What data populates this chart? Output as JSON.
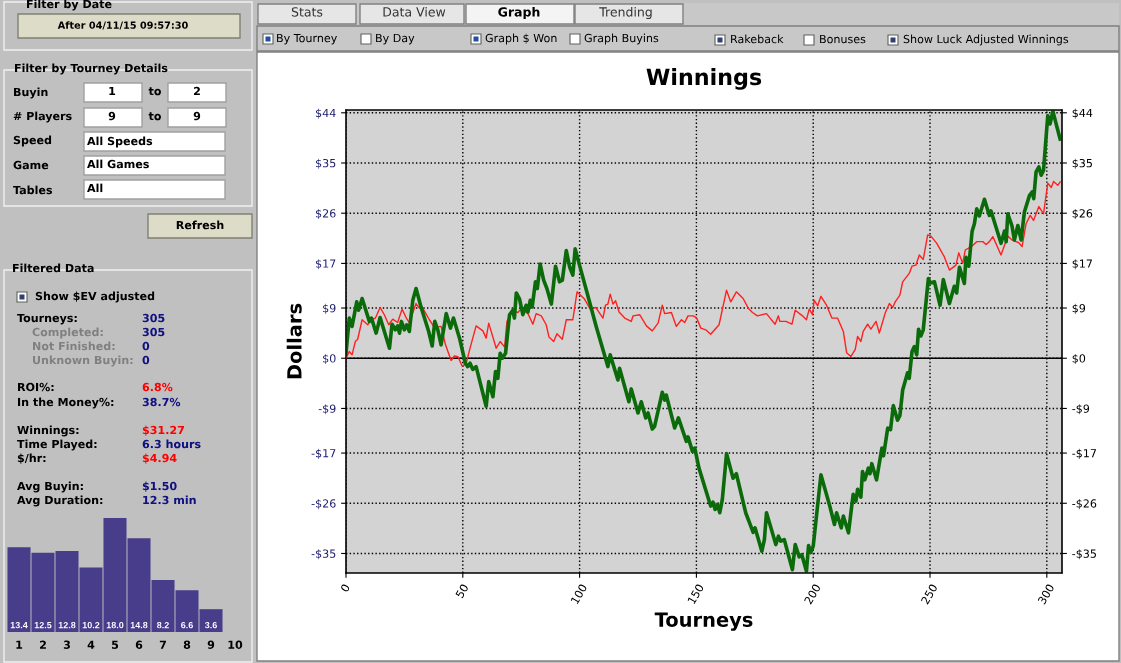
{
  "chart_data": [
    {
      "type": "other",
      "annotations": [
        "Filter by Date",
        "After 04/11/15 09:57:30",
        "Filter by Tourney Details",
        "Buyin",
        "1",
        "to",
        "2",
        "# Players",
        "9",
        "to",
        "9",
        "Speed",
        "All Speeds",
        "Game",
        "All Games",
        "Tables",
        "All",
        "Refresh",
        "Filtered Data",
        "Show $EV adjusted",
        "Tourneys:",
        "305",
        "Completed:",
        "305",
        "Not Finished:",
        "0",
        "Unknown Buyin:",
        "0",
        "ROI%:",
        "6.8%",
        "In the Money%:",
        "38.7%",
        "Winnings:",
        "$31.27",
        "Time Played:",
        "6.3 hours",
        "$/hr:",
        "$4.94",
        "Avg Buyin:",
        "$1.50",
        "Avg Duration:",
        "12.3 min",
        "Stats",
        "Data View",
        "Graph",
        "Trending",
        "By Tourney",
        "By Day",
        "Graph $ Won",
        "Graph Buyins",
        "Rakeback",
        "Bonuses",
        "Show Luck Adjusted Winnings"
      ]
    },
    {
      "type": "bar",
      "categories": [
        "1",
        "2",
        "3",
        "4",
        "5",
        "6",
        "7",
        "8",
        "9",
        "10"
      ],
      "values": [
        13.4,
        12.5,
        12.8,
        10.2,
        18.0,
        14.8,
        8.2,
        6.6,
        3.6,
        null
      ],
      "value_labels": [
        "13.4",
        "12.5",
        "12.8",
        "10.2",
        "18.0",
        "14.8",
        "8.2",
        "6.6",
        "3.6",
        null
      ],
      "color": "#483d8b",
      "tick_labels": "x"
    },
    {
      "type": "line",
      "title": "Winnings",
      "xlabel": "Tourneys",
      "ylabel": "Dollars",
      "grid": true,
      "marker": "none",
      "line_style": "solid",
      "xlim": [
        0,
        306.5
      ],
      "xticks": [
        0,
        50,
        100,
        150,
        200,
        250,
        300
      ],
      "ylim": [
        -38.5,
        44.5
      ],
      "yticks": [
        {
          "value": 44,
          "label": "$44"
        },
        {
          "value": 35,
          "label": "$35"
        },
        {
          "value": 26,
          "label": "$26"
        },
        {
          "value": 17,
          "label": "$17"
        },
        {
          "value": 9,
          "label": "$9"
        },
        {
          "value": 0,
          "label": "$0"
        },
        {
          "value": -9,
          "label": "-$9"
        },
        {
          "value": -17,
          "label": "-$17"
        },
        {
          "value": -26,
          "label": "-$26"
        },
        {
          "value": -35,
          "label": "-$35"
        }
      ],
      "y2lim": [
        -38.5,
        44.5
      ],
      "y2ticks": [
        {
          "value": 44,
          "label": "$44"
        },
        {
          "value": 35,
          "label": "$35"
        },
        {
          "value": 26,
          "label": "$26"
        },
        {
          "value": 17,
          "label": "$17"
        },
        {
          "value": 9,
          "label": "$9"
        },
        {
          "value": 0,
          "label": "$0"
        },
        {
          "value": -9,
          "label": "-$9"
        },
        {
          "value": -17,
          "label": "-$17"
        },
        {
          "value": -26,
          "label": "-$26"
        },
        {
          "value": -35,
          "label": "-$35"
        }
      ],
      "ref_lines": [
        {
          "axis": "y",
          "value": 0,
          "color": "#000000"
        }
      ],
      "series": [
        {
          "color": "#ff2020",
          "x": [
            0,
            1.4,
            2.6,
            4,
            5,
            6.9,
            9.3,
            10.7,
            12.6,
            14.6,
            16.4,
            18.3,
            20,
            22.1,
            24,
            25.7,
            27.1,
            30,
            31.1,
            33.1,
            35.7,
            37.9,
            40.7,
            42.6,
            45,
            46.4,
            47.9,
            49.7,
            51.4,
            53.1,
            55.7,
            58.6,
            60,
            61.1,
            64.3,
            66,
            67.9,
            68.9,
            71.4,
            73.6,
            75,
            77.9,
            80,
            81.4,
            83.6,
            85.7,
            86.9,
            88.9,
            90.3,
            92.6,
            94.3,
            97.1,
            98.9,
            102.1,
            104.6,
            106.9,
            110,
            111.1,
            112.1,
            113.1,
            114.3,
            115.4,
            116.9,
            119.3,
            122.1,
            122.9,
            125.7,
            128.6,
            131.1,
            133.6,
            135.4,
            136.4,
            139.3,
            141.4,
            143.6,
            145,
            146.4,
            148.6,
            150,
            151.9,
            154,
            156.1,
            159.7,
            162.9,
            164.7,
            167.1,
            170,
            172.3,
            174,
            176.1,
            180,
            181.9,
            183.7,
            185.1,
            185.7,
            188.3,
            190.9,
            192.3,
            195.4,
            197.1,
            198.3,
            199.7,
            200.4,
            201.9,
            203.3,
            205.7,
            208,
            210.4,
            212.9,
            214.3,
            216.1,
            218,
            219,
            220.4,
            221.4,
            223.3,
            224.7,
            226.9,
            228.3,
            230.9,
            232.6,
            234,
            235.1,
            237.1,
            238.3,
            241.1,
            242.3,
            244,
            245.4,
            247.1,
            249,
            250.4,
            252.9,
            256.1,
            258.3,
            261.1,
            262.3,
            264,
            265.1,
            268,
            270,
            272.6,
            274,
            275.4,
            276.9,
            280.4,
            283.3,
            285.1,
            288,
            289.4,
            291.1,
            292.9,
            294.3,
            296.6,
            298.6,
            300.4,
            301.9,
            302.9,
            304.7,
            305.7
          ],
          "values": [
            0,
            1.2,
            0.6,
            3.0,
            3.4,
            6.9,
            6.0,
            6.9,
            7.2,
            9.1,
            7.8,
            6.0,
            7.0,
            6.4,
            8.8,
            7.3,
            6.4,
            9.8,
            9.1,
            8.8,
            6.9,
            5.5,
            5.7,
            2.4,
            -0.4,
            0.4,
            0.3,
            -1.4,
            -1.0,
            1.8,
            5.8,
            4.9,
            3.6,
            6.3,
            1.8,
            3.0,
            2.0,
            6.6,
            8.5,
            8.2,
            8.9,
            8.0,
            6.1,
            8.0,
            7.6,
            6.0,
            3.8,
            3.0,
            4.4,
            3.4,
            6.9,
            6.9,
            11.9,
            10.6,
            8.8,
            9.1,
            7.2,
            9.5,
            9.7,
            11.5,
            9.7,
            10.3,
            8.3,
            7.2,
            6.6,
            7.6,
            7.8,
            5.8,
            4.9,
            6.3,
            9.5,
            8.0,
            8.2,
            5.7,
            6.9,
            6.4,
            7.6,
            7.6,
            7.3,
            5.4,
            5.1,
            4.3,
            6.0,
            12.2,
            10.1,
            11.9,
            10.7,
            8.9,
            8.2,
            7.6,
            8.0,
            7.0,
            6.1,
            7.6,
            6.6,
            6.6,
            6.1,
            8.6,
            7.6,
            6.9,
            8.8,
            7.8,
            10.4,
            9.4,
            11.1,
            9.5,
            7.2,
            7.2,
            4.8,
            1.0,
            0.3,
            1.6,
            3.9,
            3.0,
            4.8,
            6.1,
            5.2,
            6.6,
            4.5,
            8.2,
            9.8,
            9.1,
            10.1,
            11.3,
            13.7,
            15.2,
            16.5,
            16.7,
            18.5,
            17.7,
            22.1,
            21.9,
            20.6,
            18.2,
            15.8,
            16.7,
            18.9,
            17.0,
            19.4,
            20.1,
            20.9,
            20.9,
            20.4,
            20.9,
            21.8,
            18.5,
            21.9,
            21.2,
            20.7,
            20.0,
            24.1,
            25.6,
            24.7,
            27.2,
            25.9,
            31.4,
            30.6,
            31.7,
            31.0,
            31.6
          ]
        },
        {
          "color": "#0b6b0b",
          "x": [
            0,
            1.4,
            2.6,
            4.6,
            5.4,
            6.9,
            10,
            10.9,
            12.9,
            14.6,
            18.6,
            19.7,
            21.1,
            22.1,
            22.9,
            23.7,
            25,
            26,
            27.1,
            28.6,
            30,
            32.1,
            35.4,
            36.9,
            38,
            39.3,
            40.7,
            42.9,
            44.7,
            46,
            48.6,
            51.1,
            52.1,
            53.1,
            54.3,
            55.7,
            60,
            61.1,
            62.9,
            64,
            65,
            66,
            66.9,
            68.3,
            70,
            71.4,
            72.1,
            72.9,
            74.3,
            75.7,
            77.1,
            77.9,
            78.9,
            79.7,
            81.1,
            81.9,
            83.1,
            84.6,
            86,
            87.9,
            89.7,
            91.4,
            92.6,
            94.3,
            95.7,
            97.1,
            98.1,
            99.7,
            102.9,
            107.1,
            112.1,
            113.1,
            116.4,
            117.1,
            121.1,
            122.1,
            125,
            126.4,
            128.3,
            129.3,
            131.1,
            132.1,
            135.4,
            136.4,
            137.1,
            140.7,
            142.3,
            145.7,
            146.4,
            148.3,
            149.3,
            151.1,
            156.1,
            157.1,
            158,
            159,
            160,
            161.1,
            162.9,
            165.7,
            167.1,
            171.1,
            174.3,
            175.1,
            178,
            179.1,
            180,
            181.9,
            184,
            185.1,
            186.1,
            187.6,
            191.1,
            192.3,
            194,
            195.1,
            197.1,
            198,
            199,
            200,
            203.3,
            206.9,
            209.1,
            210,
            212,
            212.9,
            215.1,
            217.1,
            218.3,
            219,
            220.4,
            221.1,
            222.1,
            223.6,
            224.3,
            225.1,
            227.1,
            229.4,
            230.1,
            231.9,
            233.1,
            234.3,
            236.1,
            237.1,
            238.3,
            240.4,
            241.1,
            242.3,
            243.3,
            244.3,
            245.1,
            246.1,
            247.1,
            249.3,
            250,
            251.9,
            254.3,
            255.7,
            258.3,
            260.4,
            261.4,
            262.6,
            264.7,
            265.4,
            266.6,
            268,
            269,
            270,
            271.1,
            273.3,
            275.4,
            276.1,
            280.4,
            281.9,
            282.6,
            283.3,
            285.1,
            286.1,
            287.6,
            289,
            290.4,
            292.6,
            293.7,
            294.4,
            295.4,
            296.6,
            297.6,
            298.6,
            300.4,
            301.4,
            302.6,
            304,
            305.7
          ],
          "values": [
            0.9,
            7.2,
            5.7,
            10.1,
            8.6,
            10.7,
            6.6,
            7.2,
            4.5,
            7.3,
            1.8,
            6.1,
            5.1,
            5.8,
            4.5,
            6.6,
            5.1,
            6.0,
            4.8,
            10.4,
            12.5,
            9.2,
            4.8,
            2.2,
            6.6,
            5.1,
            2.4,
            8.0,
            5.4,
            7.2,
            3.6,
            -0.9,
            -1.5,
            -0.9,
            -2.0,
            -1.5,
            -8.6,
            -4.2,
            -6.9,
            -2.4,
            -3.6,
            0.9,
            0,
            0.9,
            7.8,
            8.6,
            7.2,
            11.7,
            10.6,
            7.8,
            9.5,
            8.3,
            10.4,
            9.2,
            13.7,
            12.5,
            16.9,
            14.0,
            12.5,
            9.7,
            16.5,
            13.7,
            14.0,
            19.3,
            16.4,
            14.9,
            19.6,
            17.1,
            12.2,
            5.7,
            -1.5,
            0.6,
            -3.9,
            -1.8,
            -7.8,
            -5.5,
            -9.8,
            -7.8,
            -10.7,
            -9.8,
            -12.7,
            -12.2,
            -6.1,
            -7.5,
            -6.6,
            -12.5,
            -10.7,
            -14.9,
            -14.1,
            -16.7,
            -16.1,
            -19.7,
            -26.5,
            -25.8,
            -27.1,
            -26.2,
            -27.7,
            -25.3,
            -17.1,
            -21.5,
            -20.7,
            -27.7,
            -31.2,
            -30.4,
            -34.6,
            -32.5,
            -27.7,
            -30.4,
            -33.4,
            -31.9,
            -32.8,
            -32.5,
            -37.9,
            -33.4,
            -35.6,
            -35.2,
            -38.2,
            -33.6,
            -34.8,
            -33.7,
            -20.9,
            -26.2,
            -29.8,
            -27.7,
            -30.4,
            -28.3,
            -31.3,
            -24.4,
            -25.6,
            -23.5,
            -24.9,
            -20.3,
            -21.8,
            -19.7,
            -20.7,
            -18.9,
            -21.8,
            -16.1,
            -17.5,
            -12.5,
            -12.8,
            -8.5,
            -11.1,
            -10.3,
            -5.7,
            -2.6,
            -3.6,
            1.2,
            2.1,
            0.6,
            5.2,
            4.0,
            5.1,
            14.3,
            13.5,
            13.7,
            9.5,
            14.1,
            9.8,
            12.9,
            11.7,
            16.3,
            13.4,
            18.1,
            16.5,
            22.7,
            24.1,
            26.8,
            25.5,
            28.5,
            25.6,
            26.4,
            20.6,
            22.8,
            20.9,
            25.9,
            23.7,
            21.2,
            23.8,
            21.2,
            26.2,
            29.2,
            29.8,
            28.6,
            33.4,
            34.3,
            32.8,
            33.7,
            43.5,
            42.0,
            44.3,
            42.0,
            39.3
          ]
        }
      ]
    }
  ]
}
